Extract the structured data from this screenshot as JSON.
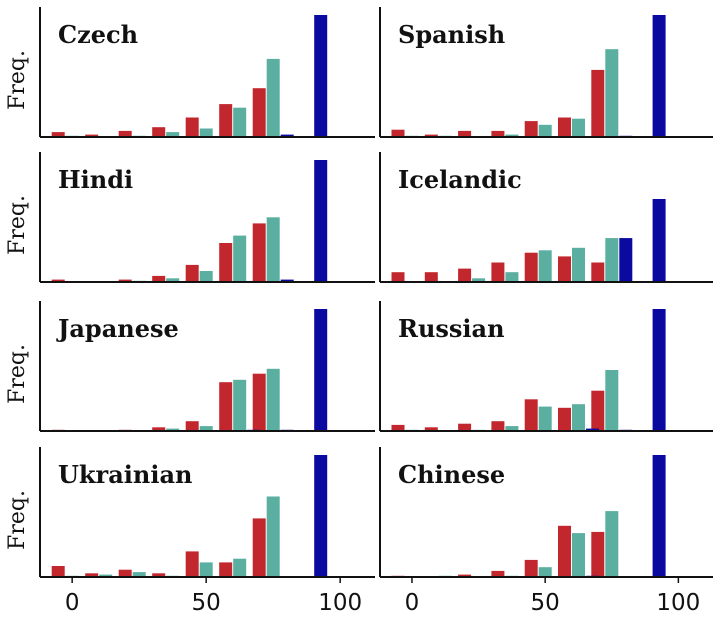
{
  "chart_data": {
    "type": "bar",
    "layout": "4x2 grid, shared x axis per column",
    "ylabel": "Freq.",
    "x_ticks": [
      0,
      50,
      100
    ],
    "xlim": [
      -12,
      113
    ],
    "bin_centers": [
      0,
      12.5,
      25,
      37.5,
      50,
      62.5,
      75,
      87.5,
      100
    ],
    "series_colors": [
      "#c1272d",
      "#5aafa0",
      "#0a0aa0"
    ],
    "grid": false,
    "legend": "none",
    "panels": [
      {
        "title": "Czech",
        "ymax": 1.0,
        "series": [
          {
            "values": [
              0.04,
              0.02,
              0.05,
              0.08,
              0.16,
              0.27,
              0.4,
              0.0,
              0.0
            ]
          },
          {
            "values": [
              0.01,
              0.0,
              0.01,
              0.04,
              0.07,
              0.24,
              0.64,
              0.0,
              0.0
            ]
          },
          {
            "values": [
              0.0,
              0.0,
              0.0,
              0.0,
              0.0,
              0.0,
              0.02,
              1.0,
              0.0
            ]
          }
        ]
      },
      {
        "title": "Spanish",
        "ymax": 1.0,
        "series": [
          {
            "values": [
              0.06,
              0.02,
              0.05,
              0.05,
              0.13,
              0.16,
              0.55,
              0.0,
              0.0
            ]
          },
          {
            "values": [
              0.01,
              0.01,
              0.0,
              0.02,
              0.1,
              0.15,
              0.72,
              0.0,
              0.0
            ]
          },
          {
            "values": [
              0.0,
              0.0,
              0.0,
              0.0,
              0.0,
              0.0,
              0.01,
              1.0,
              0.0
            ]
          }
        ]
      },
      {
        "title": "Hindi",
        "ymax": 1.0,
        "series": [
          {
            "values": [
              0.02,
              0.0,
              0.02,
              0.05,
              0.14,
              0.32,
              0.48,
              0.0,
              0.0
            ]
          },
          {
            "values": [
              0.0,
              0.0,
              0.01,
              0.03,
              0.09,
              0.38,
              0.53,
              0.0,
              0.0
            ]
          },
          {
            "values": [
              0.0,
              0.0,
              0.0,
              0.0,
              0.0,
              0.0,
              0.02,
              1.0,
              0.0
            ]
          }
        ]
      },
      {
        "title": "Icelandic",
        "ymax": 1.0,
        "series": [
          {
            "values": [
              0.08,
              0.08,
              0.11,
              0.16,
              0.24,
              0.21,
              0.16,
              0.0,
              0.0
            ]
          },
          {
            "values": [
              0.0,
              0.0,
              0.03,
              0.08,
              0.26,
              0.28,
              0.36,
              0.0,
              0.0
            ]
          },
          {
            "values": [
              0.0,
              0.0,
              0.0,
              0.0,
              0.0,
              0.0,
              0.36,
              0.68,
              0.0
            ]
          }
        ]
      },
      {
        "title": "Japanese",
        "ymax": 1.0,
        "series": [
          {
            "values": [
              0.01,
              0.0,
              0.01,
              0.03,
              0.08,
              0.4,
              0.47,
              0.0,
              0.0
            ]
          },
          {
            "values": [
              0.0,
              0.0,
              0.0,
              0.02,
              0.04,
              0.42,
              0.51,
              0.0,
              0.0
            ]
          },
          {
            "values": [
              0.0,
              0.0,
              0.0,
              0.0,
              0.0,
              0.01,
              0.01,
              1.0,
              0.0
            ]
          }
        ]
      },
      {
        "title": "Russian",
        "ymax": 1.0,
        "series": [
          {
            "values": [
              0.05,
              0.03,
              0.06,
              0.08,
              0.26,
              0.19,
              0.33,
              0.0,
              0.0
            ]
          },
          {
            "values": [
              0.01,
              0.0,
              0.01,
              0.04,
              0.2,
              0.22,
              0.5,
              0.0,
              0.0
            ]
          },
          {
            "values": [
              0.0,
              0.0,
              0.0,
              0.0,
              0.0,
              0.02,
              0.01,
              1.0,
              0.0
            ]
          }
        ]
      },
      {
        "title": "Ukrainian",
        "ymax": 1.0,
        "series": [
          {
            "values": [
              0.09,
              0.03,
              0.06,
              0.03,
              0.21,
              0.12,
              0.48,
              0.0,
              0.0
            ]
          },
          {
            "values": [
              0.01,
              0.02,
              0.04,
              0.01,
              0.12,
              0.15,
              0.66,
              0.0,
              0.0
            ]
          },
          {
            "values": [
              0.0,
              0.0,
              0.0,
              0.0,
              0.0,
              0.0,
              0.0,
              1.0,
              0.0
            ]
          }
        ]
      },
      {
        "title": "Chinese",
        "ymax": 1.0,
        "series": [
          {
            "values": [
              0.01,
              0.0,
              0.02,
              0.05,
              0.14,
              0.42,
              0.37,
              0.0,
              0.0
            ]
          },
          {
            "values": [
              0.0,
              0.01,
              0.0,
              0.01,
              0.08,
              0.36,
              0.54,
              0.0,
              0.0
            ]
          },
          {
            "values": [
              0.0,
              0.0,
              0.0,
              0.0,
              0.0,
              0.01,
              0.0,
              1.0,
              0.0
            ]
          }
        ]
      }
    ]
  }
}
